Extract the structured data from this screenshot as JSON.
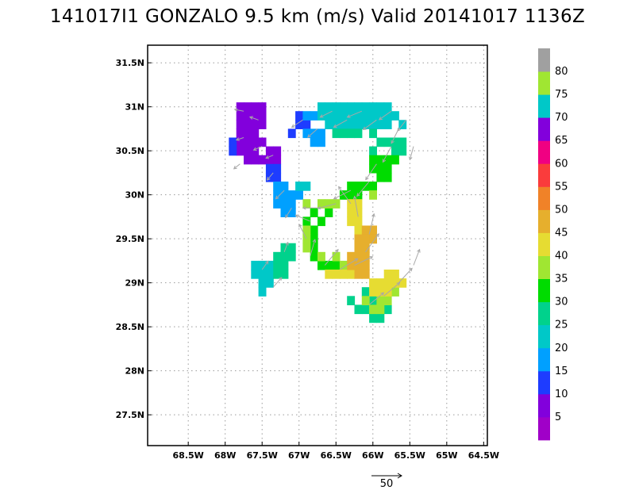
{
  "title": "141017I1 GONZALO 9.5 km (m/s) Valid 20141017 1136Z",
  "chart_data": {
    "type": "heatmap",
    "title": "141017I1 GONZALO 9.5 km (m/s) Valid 20141017 1136Z",
    "xlabel": "",
    "ylabel": "",
    "xlim": [
      -69.05,
      -64.45
    ],
    "ylim": [
      27.15,
      31.7
    ],
    "grid": true,
    "grid_style": "dotted",
    "xticks": [
      {
        "v": -68.5,
        "label": "68.5W"
      },
      {
        "v": -68.0,
        "label": "68W"
      },
      {
        "v": -67.5,
        "label": "67.5W"
      },
      {
        "v": -67.0,
        "label": "67W"
      },
      {
        "v": -66.5,
        "label": "66.5W"
      },
      {
        "v": -66.0,
        "label": "66W"
      },
      {
        "v": -65.5,
        "label": "65.5W"
      },
      {
        "v": -65.0,
        "label": "65W"
      },
      {
        "v": -64.5,
        "label": "64.5W"
      }
    ],
    "yticks": [
      {
        "v": 27.5,
        "label": "27.5N"
      },
      {
        "v": 28.0,
        "label": "28N"
      },
      {
        "v": 28.5,
        "label": "28.5N"
      },
      {
        "v": 29.0,
        "label": "29N"
      },
      {
        "v": 29.5,
        "label": "29.5N"
      },
      {
        "v": 30.0,
        "label": "30N"
      },
      {
        "v": 30.5,
        "label": "30.5N"
      },
      {
        "v": 31.0,
        "label": "31N"
      },
      {
        "v": 31.5,
        "label": "31.5N"
      }
    ],
    "colorbar": {
      "labels": [
        "5",
        "10",
        "15",
        "20",
        "25",
        "30",
        "35",
        "40",
        "45",
        "50",
        "55",
        "60",
        "65",
        "70",
        "75",
        "80"
      ],
      "colors": [
        "#a000c8",
        "#8200dc",
        "#1e3cff",
        "#00a0ff",
        "#00c8c8",
        "#00d28c",
        "#00dc00",
        "#a0e632",
        "#e6dc32",
        "#e6af2d",
        "#f08228",
        "#fa3c3c",
        "#f00082",
        "#8200dc",
        "#00c8c8",
        "#a0e632",
        "#a0a0a0"
      ]
    },
    "wind_speed_regions": [
      {
        "color": "#8200dc",
        "value": 5,
        "cells": [
          [
            -67.8,
            31.0
          ],
          [
            -67.7,
            31.0
          ],
          [
            -67.6,
            31.0
          ],
          [
            -67.5,
            31.0
          ],
          [
            -67.8,
            30.9
          ],
          [
            -67.7,
            30.9
          ],
          [
            -67.6,
            30.9
          ],
          [
            -67.5,
            30.9
          ],
          [
            -67.8,
            30.8
          ],
          [
            -67.7,
            30.8
          ],
          [
            -67.6,
            30.8
          ],
          [
            -67.5,
            30.8
          ],
          [
            -67.8,
            30.7
          ],
          [
            -67.7,
            30.7
          ],
          [
            -67.6,
            30.7
          ],
          [
            -67.8,
            30.6
          ],
          [
            -67.7,
            30.6
          ],
          [
            -67.6,
            30.6
          ],
          [
            -67.5,
            30.6
          ],
          [
            -67.8,
            30.5
          ],
          [
            -67.7,
            30.5
          ],
          [
            -67.6,
            30.5
          ],
          [
            -67.4,
            30.5
          ],
          [
            -67.3,
            30.5
          ],
          [
            -67.7,
            30.4
          ],
          [
            -67.6,
            30.4
          ],
          [
            -67.5,
            30.4
          ],
          [
            -67.4,
            30.4
          ],
          [
            -67.3,
            30.4
          ]
        ]
      },
      {
        "color": "#1e3cff",
        "value": 10,
        "cells": [
          [
            -67.9,
            30.6
          ],
          [
            -67.9,
            30.5
          ],
          [
            -67.4,
            30.3
          ],
          [
            -67.3,
            30.3
          ],
          [
            -67.4,
            30.2
          ],
          [
            -67.3,
            30.2
          ],
          [
            -67.0,
            30.9
          ],
          [
            -66.9,
            30.8
          ],
          [
            -67.0,
            30.8
          ],
          [
            -67.1,
            30.7
          ]
        ]
      },
      {
        "color": "#00a0ff",
        "value": 15,
        "cells": [
          [
            -67.3,
            30.1
          ],
          [
            -67.2,
            30.1
          ],
          [
            -67.3,
            30.0
          ],
          [
            -67.2,
            30.0
          ],
          [
            -67.1,
            30.0
          ],
          [
            -67.0,
            30.0
          ],
          [
            -67.3,
            29.9
          ],
          [
            -67.2,
            29.9
          ],
          [
            -67.1,
            29.9
          ],
          [
            -67.2,
            29.8
          ],
          [
            -67.1,
            29.8
          ],
          [
            -66.9,
            30.9
          ],
          [
            -66.8,
            30.9
          ],
          [
            -66.9,
            30.7
          ],
          [
            -66.8,
            30.7
          ],
          [
            -66.7,
            30.7
          ],
          [
            -66.8,
            30.6
          ],
          [
            -66.7,
            30.6
          ]
        ]
      },
      {
        "color": "#00c8c8",
        "value": 20,
        "cells": [
          [
            -66.7,
            31.0
          ],
          [
            -66.6,
            31.0
          ],
          [
            -66.5,
            31.0
          ],
          [
            -66.4,
            31.0
          ],
          [
            -66.3,
            31.0
          ],
          [
            -66.2,
            31.0
          ],
          [
            -66.1,
            31.0
          ],
          [
            -66.0,
            31.0
          ],
          [
            -65.9,
            31.0
          ],
          [
            -65.8,
            31.0
          ],
          [
            -66.7,
            30.9
          ],
          [
            -66.6,
            30.9
          ],
          [
            -66.5,
            30.9
          ],
          [
            -66.4,
            30.9
          ],
          [
            -66.3,
            30.9
          ],
          [
            -66.2,
            30.9
          ],
          [
            -66.1,
            30.9
          ],
          [
            -66.0,
            30.9
          ],
          [
            -65.9,
            30.9
          ],
          [
            -65.8,
            30.9
          ],
          [
            -65.7,
            30.9
          ],
          [
            -66.6,
            30.8
          ],
          [
            -66.5,
            30.8
          ],
          [
            -66.4,
            30.8
          ],
          [
            -66.3,
            30.8
          ],
          [
            -66.2,
            30.8
          ],
          [
            -66.1,
            30.8
          ],
          [
            -66.0,
            30.8
          ],
          [
            -65.9,
            30.8
          ],
          [
            -65.8,
            30.8
          ],
          [
            -65.6,
            30.8
          ],
          [
            -67.6,
            29.2
          ],
          [
            -67.5,
            29.2
          ],
          [
            -67.4,
            29.2
          ],
          [
            -67.6,
            29.1
          ],
          [
            -67.5,
            29.1
          ],
          [
            -67.4,
            29.1
          ],
          [
            -67.5,
            29.0
          ],
          [
            -67.4,
            29.0
          ],
          [
            -67.5,
            28.9
          ],
          [
            -67.0,
            30.1
          ],
          [
            -66.9,
            30.1
          ]
        ]
      },
      {
        "color": "#00d28c",
        "value": 25,
        "cells": [
          [
            -66.5,
            30.7
          ],
          [
            -66.4,
            30.7
          ],
          [
            -66.3,
            30.7
          ],
          [
            -66.2,
            30.7
          ],
          [
            -66.0,
            30.7
          ],
          [
            -65.9,
            30.6
          ],
          [
            -65.8,
            30.6
          ],
          [
            -65.7,
            30.6
          ],
          [
            -65.6,
            30.6
          ],
          [
            -65.7,
            30.5
          ],
          [
            -65.6,
            30.5
          ],
          [
            -66.0,
            30.5
          ],
          [
            -67.2,
            29.4
          ],
          [
            -67.1,
            29.4
          ],
          [
            -67.3,
            29.3
          ],
          [
            -67.2,
            29.3
          ],
          [
            -67.1,
            29.3
          ],
          [
            -67.3,
            29.2
          ],
          [
            -67.2,
            29.2
          ],
          [
            -67.3,
            29.1
          ],
          [
            -67.2,
            29.1
          ],
          [
            -66.3,
            28.8
          ],
          [
            -66.0,
            28.8
          ],
          [
            -66.2,
            28.7
          ],
          [
            -66.1,
            28.7
          ],
          [
            -65.9,
            28.6
          ],
          [
            -66.0,
            28.6
          ],
          [
            -65.8,
            28.7
          ],
          [
            -66.1,
            28.9
          ]
        ]
      },
      {
        "color": "#00dc00",
        "value": 30,
        "cells": [
          [
            -66.0,
            30.4
          ],
          [
            -65.9,
            30.4
          ],
          [
            -65.8,
            30.4
          ],
          [
            -65.7,
            30.4
          ],
          [
            -66.0,
            30.3
          ],
          [
            -65.9,
            30.3
          ],
          [
            -65.8,
            30.3
          ],
          [
            -65.9,
            30.2
          ],
          [
            -65.8,
            30.2
          ],
          [
            -66.3,
            30.1
          ],
          [
            -66.2,
            30.1
          ],
          [
            -66.1,
            30.1
          ],
          [
            -66.0,
            30.1
          ],
          [
            -66.4,
            30.0
          ],
          [
            -66.3,
            30.0
          ],
          [
            -66.2,
            30.0
          ],
          [
            -66.6,
            29.8
          ],
          [
            -66.7,
            29.7
          ],
          [
            -66.8,
            29.6
          ],
          [
            -66.8,
            29.5
          ],
          [
            -66.8,
            29.4
          ],
          [
            -66.8,
            29.3
          ],
          [
            -66.7,
            29.2
          ],
          [
            -66.6,
            29.2
          ],
          [
            -66.5,
            29.2
          ],
          [
            -66.6,
            29.8
          ],
          [
            -66.8,
            29.8
          ],
          [
            -66.9,
            29.7
          ]
        ]
      },
      {
        "color": "#a0e632",
        "value": 35,
        "cells": [
          [
            -66.5,
            29.9
          ],
          [
            -66.6,
            29.9
          ],
          [
            -66.7,
            29.9
          ],
          [
            -66.9,
            29.9
          ],
          [
            -66.9,
            29.6
          ],
          [
            -66.9,
            29.5
          ],
          [
            -66.9,
            29.4
          ],
          [
            -66.7,
            29.3
          ],
          [
            -66.5,
            29.3
          ],
          [
            -66.4,
            29.2
          ],
          [
            -66.0,
            30.0
          ],
          [
            -65.8,
            28.8
          ],
          [
            -65.9,
            28.8
          ],
          [
            -65.7,
            28.9
          ],
          [
            -65.9,
            28.7
          ],
          [
            -66.0,
            28.7
          ],
          [
            -66.1,
            28.8
          ]
        ]
      },
      {
        "color": "#e6dc32",
        "value": 40,
        "cells": [
          [
            -66.3,
            29.9
          ],
          [
            -66.2,
            29.9
          ],
          [
            -66.3,
            29.8
          ],
          [
            -66.2,
            29.8
          ],
          [
            -66.3,
            29.7
          ],
          [
            -66.2,
            29.7
          ],
          [
            -66.2,
            29.6
          ],
          [
            -66.3,
            29.1
          ],
          [
            -66.4,
            29.1
          ],
          [
            -66.5,
            29.1
          ],
          [
            -66.6,
            29.1
          ],
          [
            -65.7,
            29.1
          ],
          [
            -65.8,
            29.0
          ],
          [
            -65.9,
            29.0
          ],
          [
            -65.8,
            29.1
          ],
          [
            -65.7,
            29.0
          ],
          [
            -66.0,
            29.0
          ],
          [
            -65.9,
            28.9
          ],
          [
            -65.8,
            28.9
          ],
          [
            -65.6,
            29.0
          ],
          [
            -66.0,
            28.9
          ]
        ]
      },
      {
        "color": "#e6af2d",
        "value": 50,
        "cells": [
          [
            -66.1,
            29.6
          ],
          [
            -66.0,
            29.6
          ],
          [
            -66.2,
            29.5
          ],
          [
            -66.1,
            29.5
          ],
          [
            -66.0,
            29.5
          ],
          [
            -66.2,
            29.4
          ],
          [
            -66.1,
            29.4
          ],
          [
            -66.3,
            29.3
          ],
          [
            -66.2,
            29.3
          ],
          [
            -66.1,
            29.3
          ],
          [
            -66.3,
            29.2
          ],
          [
            -66.2,
            29.2
          ],
          [
            -66.1,
            29.2
          ],
          [
            -66.2,
            29.1
          ],
          [
            -66.1,
            29.1
          ]
        ]
      }
    ],
    "vector_reference": {
      "label": "50",
      "value": 50
    },
    "wind_vectors": [
      {
        "lon": -67.75,
        "lat": 30.95,
        "u": -15,
        "v": 3
      },
      {
        "lon": -67.55,
        "lat": 30.85,
        "u": -14,
        "v": 5
      },
      {
        "lon": -67.75,
        "lat": 30.65,
        "u": -12,
        "v": -4
      },
      {
        "lon": -67.5,
        "lat": 30.55,
        "u": -14,
        "v": -6
      },
      {
        "lon": -67.8,
        "lat": 30.35,
        "u": -10,
        "v": -8
      },
      {
        "lon": -67.35,
        "lat": 30.45,
        "u": -12,
        "v": -5
      },
      {
        "lon": -67.35,
        "lat": 30.25,
        "u": -10,
        "v": -12
      },
      {
        "lon": -67.2,
        "lat": 30.05,
        "u": -14,
        "v": -14
      },
      {
        "lon": -67.1,
        "lat": 29.85,
        "u": -10,
        "v": -16
      },
      {
        "lon": -66.95,
        "lat": 30.85,
        "u": -18,
        "v": -12
      },
      {
        "lon": -66.75,
        "lat": 30.75,
        "u": -16,
        "v": -14
      },
      {
        "lon": -66.55,
        "lat": 30.95,
        "u": -20,
        "v": -10
      },
      {
        "lon": -66.35,
        "lat": 30.85,
        "u": -22,
        "v": -12
      },
      {
        "lon": -66.15,
        "lat": 30.95,
        "u": -24,
        "v": -10
      },
      {
        "lon": -65.95,
        "lat": 30.85,
        "u": -22,
        "v": -16
      },
      {
        "lon": -65.75,
        "lat": 30.95,
        "u": -20,
        "v": -14
      },
      {
        "lon": -65.65,
        "lat": 30.75,
        "u": -12,
        "v": -24
      },
      {
        "lon": -65.75,
        "lat": 30.55,
        "u": -14,
        "v": -26
      },
      {
        "lon": -65.95,
        "lat": 30.35,
        "u": -18,
        "v": -26
      },
      {
        "lon": -66.05,
        "lat": 30.15,
        "u": -20,
        "v": -24
      },
      {
        "lon": -66.3,
        "lat": 30.05,
        "u": -28,
        "v": -14
      },
      {
        "lon": -66.5,
        "lat": 29.9,
        "u": -30,
        "v": -8
      },
      {
        "lon": -66.7,
        "lat": 29.85,
        "u": -30,
        "v": 0
      },
      {
        "lon": -66.85,
        "lat": 29.7,
        "u": -24,
        "v": 10
      },
      {
        "lon": -66.9,
        "lat": 29.5,
        "u": -12,
        "v": 24
      },
      {
        "lon": -66.85,
        "lat": 29.3,
        "u": 8,
        "v": 28
      },
      {
        "lon": -66.65,
        "lat": 29.2,
        "u": 22,
        "v": 26
      },
      {
        "lon": -66.45,
        "lat": 29.15,
        "u": 30,
        "v": 18
      },
      {
        "lon": -66.25,
        "lat": 29.2,
        "u": 30,
        "v": 14
      },
      {
        "lon": -66.1,
        "lat": 29.35,
        "u": 22,
        "v": 30
      },
      {
        "lon": -66.05,
        "lat": 29.55,
        "u": 8,
        "v": 34
      },
      {
        "lon": -66.2,
        "lat": 29.75,
        "u": -6,
        "v": 34
      },
      {
        "lon": -66.3,
        "lat": 29.9,
        "u": -20,
        "v": 28
      },
      {
        "lon": -67.2,
        "lat": 29.35,
        "u": 6,
        "v": 16
      },
      {
        "lon": -67.5,
        "lat": 29.15,
        "u": 10,
        "v": 14
      },
      {
        "lon": -67.35,
        "lat": 28.95,
        "u": 14,
        "v": 16
      },
      {
        "lon": -66.05,
        "lat": 28.75,
        "u": 24,
        "v": 20
      },
      {
        "lon": -65.85,
        "lat": 28.85,
        "u": 26,
        "v": 22
      },
      {
        "lon": -65.65,
        "lat": 29.0,
        "u": 22,
        "v": 24
      },
      {
        "lon": -65.45,
        "lat": 29.2,
        "u": 10,
        "v": 26
      },
      {
        "lon": -65.45,
        "lat": 30.55,
        "u": -6,
        "v": -22
      },
      {
        "lon": -65.55,
        "lat": 30.85,
        "u": -14,
        "v": -18
      }
    ]
  }
}
